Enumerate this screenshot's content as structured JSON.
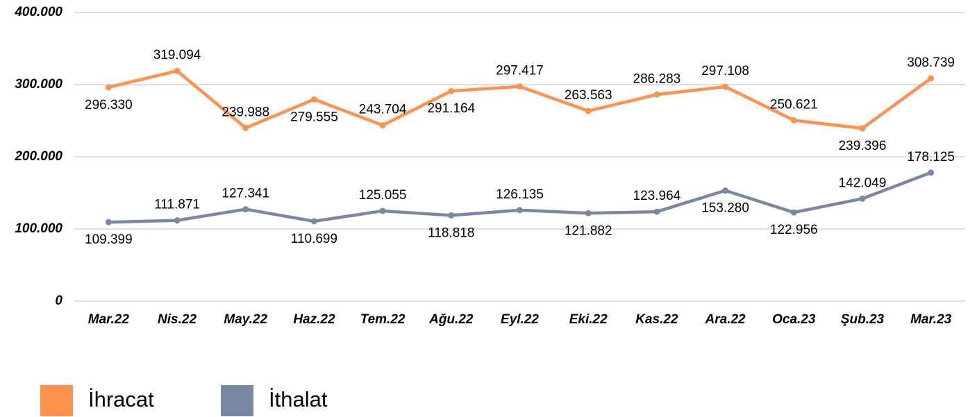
{
  "chart_data": {
    "type": "line",
    "categories": [
      "Mar.22",
      "Nis.22",
      "May.22",
      "Haz.22",
      "Tem.22",
      "Ağu.22",
      "Eyl.22",
      "Eki.22",
      "Kas.22",
      "Ara.22",
      "Oca.23",
      "Şub.23",
      "Mar.23"
    ],
    "series": [
      {
        "name": "İhracat",
        "color": "#ff914d",
        "values": [
          296330,
          319094,
          239988,
          279555,
          243704,
          291164,
          297417,
          263563,
          286283,
          297108,
          250621,
          239396,
          308739
        ],
        "value_labels": [
          "296.330",
          "319.094",
          "239.988",
          "279.555",
          "243.704",
          "291.164",
          "297.417",
          "263.563",
          "286.283",
          "297.108",
          "250.621",
          "239.396",
          "308.739"
        ]
      },
      {
        "name": "İthalat",
        "color": "#7a89a3",
        "values": [
          109399,
          111871,
          127341,
          110699,
          125055,
          118818,
          126135,
          121882,
          123964,
          153280,
          122956,
          142049,
          178125
        ],
        "value_labels": [
          "109.399",
          "111.871",
          "127.341",
          "110.699",
          "125.055",
          "118.818",
          "126.135",
          "121.882",
          "123.964",
          "153.280",
          "122.956",
          "142.049",
          "178.125"
        ]
      }
    ],
    "ylim": [
      0,
      400000
    ],
    "yticks": [
      0,
      {
        "value": 100000,
        "label": "100.000"
      },
      {
        "value": 200000,
        "label": "200.000"
      },
      {
        "value": 300000,
        "label": "300.000"
      },
      {
        "value": 400000,
        "label": "400.000"
      }
    ],
    "grid": true
  }
}
